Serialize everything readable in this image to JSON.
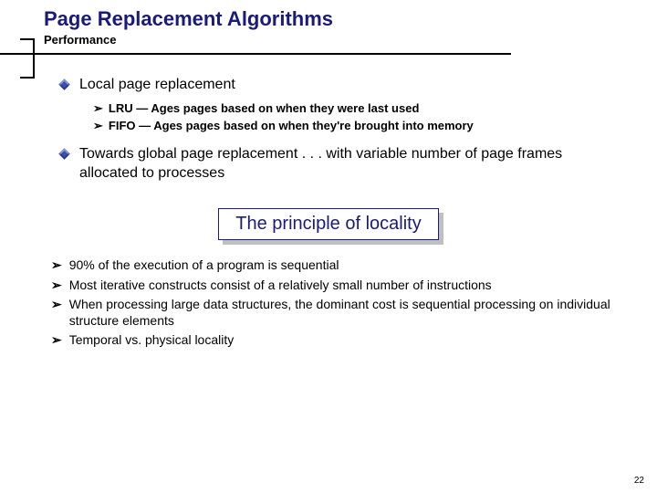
{
  "header": {
    "title": "Page Replacement Algorithms",
    "subtitle": "Performance"
  },
  "mainBullets": [
    {
      "text": "Local page replacement",
      "sub": [
        "LRU  — Ages pages based on when they were last used",
        "FIFO — Ages pages based on when they're brought into memory"
      ]
    },
    {
      "text": "Towards global page replacement . . . with variable number of page frames allocated to processes",
      "sub": []
    }
  ],
  "callout": {
    "text": "The principle of locality",
    "border_color": "#1a1a7a",
    "text_color": "#1a1a7a",
    "shadow_color": "#bfbfbf"
  },
  "lowerBullets": [
    "90% of the execution of a program is sequential",
    "Most iterative constructs consist of a relatively small number of instructions",
    "When processing large data structures, the dominant cost is sequential processing on individual structure elements",
    "Temporal vs. physical locality"
  ],
  "pageNumber": "22",
  "colors": {
    "title_color": "#1a1a7a",
    "diamond_color": "#3a4fb8",
    "rule_color": "#000000",
    "background": "#ffffff"
  }
}
